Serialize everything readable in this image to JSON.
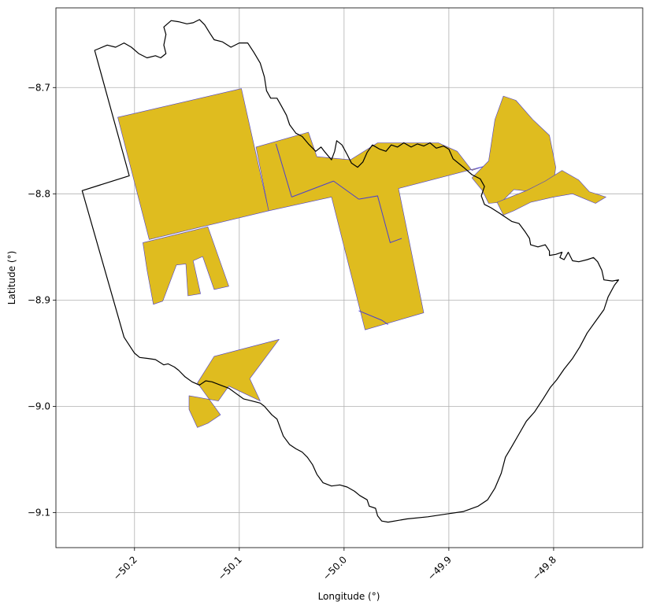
{
  "chart_data": {
    "type": "map",
    "title": "",
    "xlabel": "Longitude (°)",
    "ylabel": "Latitude (°)",
    "xlim": [
      -50.275,
      -49.715
    ],
    "ylim": [
      -9.133,
      -8.625
    ],
    "grid": true,
    "x_ticks": [
      {
        "value": -50.2,
        "label": "−50.2"
      },
      {
        "value": -50.1,
        "label": "−50.1"
      },
      {
        "value": -50.0,
        "label": "−50.0"
      },
      {
        "value": -49.9,
        "label": "−49.9"
      },
      {
        "value": -49.8,
        "label": "−49.8"
      }
    ],
    "y_ticks": [
      {
        "value": -8.7,
        "label": "−8.7"
      },
      {
        "value": -8.8,
        "label": "−8.8"
      },
      {
        "value": -8.9,
        "label": "−8.9"
      },
      {
        "value": -9.0,
        "label": "−9.0"
      },
      {
        "value": -9.1,
        "label": "−9.1"
      }
    ],
    "colors": {
      "parcel_fill": "#dfbc1f",
      "parcel_edge": "#4a3fcf",
      "boundary": "#000000",
      "grid": "#b0b0b0"
    },
    "boundary": {
      "name": "municipality-outline",
      "coords": [
        [
          -50.238,
          -8.665
        ],
        [
          -50.226,
          -8.66
        ],
        [
          -50.218,
          -8.662
        ],
        [
          -50.21,
          -8.658
        ],
        [
          -50.203,
          -8.662
        ],
        [
          -50.196,
          -8.668
        ],
        [
          -50.188,
          -8.672
        ],
        [
          -50.18,
          -8.67
        ],
        [
          -50.175,
          -8.672
        ],
        [
          -50.17,
          -8.668
        ],
        [
          -50.172,
          -8.66
        ],
        [
          -50.17,
          -8.65
        ],
        [
          -50.172,
          -8.643
        ],
        [
          -50.165,
          -8.637
        ],
        [
          -50.158,
          -8.638
        ],
        [
          -50.15,
          -8.64
        ],
        [
          -50.144,
          -8.639
        ],
        [
          -50.138,
          -8.636
        ],
        [
          -50.133,
          -8.641
        ],
        [
          -50.128,
          -8.649
        ],
        [
          -50.124,
          -8.655
        ],
        [
          -50.116,
          -8.657
        ],
        [
          -50.108,
          -8.662
        ],
        [
          -50.1,
          -8.658
        ],
        [
          -50.092,
          -8.658
        ],
        [
          -50.086,
          -8.667
        ],
        [
          -50.08,
          -8.677
        ],
        [
          -50.076,
          -8.69
        ],
        [
          -50.074,
          -8.703
        ],
        [
          -50.07,
          -8.71
        ],
        [
          -50.064,
          -8.71
        ],
        [
          -50.06,
          -8.717
        ],
        [
          -50.055,
          -8.726
        ],
        [
          -50.052,
          -8.735
        ],
        [
          -50.046,
          -8.743
        ],
        [
          -50.04,
          -8.746
        ],
        [
          -50.034,
          -8.753
        ],
        [
          -50.027,
          -8.76
        ],
        [
          -50.022,
          -8.756
        ],
        [
          -50.018,
          -8.761
        ],
        [
          -50.012,
          -8.768
        ],
        [
          -50.009,
          -8.76
        ],
        [
          -50.007,
          -8.75
        ],
        [
          -50.002,
          -8.754
        ],
        [
          -49.997,
          -8.763
        ],
        [
          -49.993,
          -8.771
        ],
        [
          -49.987,
          -8.775
        ],
        [
          -49.982,
          -8.77
        ],
        [
          -49.978,
          -8.761
        ],
        [
          -49.973,
          -8.754
        ],
        [
          -49.966,
          -8.758
        ],
        [
          -49.96,
          -8.76
        ],
        [
          -49.955,
          -8.754
        ],
        [
          -49.949,
          -8.756
        ],
        [
          -49.943,
          -8.752
        ],
        [
          -49.936,
          -8.756
        ],
        [
          -49.93,
          -8.753
        ],
        [
          -49.924,
          -8.755
        ],
        [
          -49.918,
          -8.752
        ],
        [
          -49.912,
          -8.757
        ],
        [
          -49.905,
          -8.755
        ],
        [
          -49.9,
          -8.758
        ],
        [
          -49.896,
          -8.767
        ],
        [
          -49.886,
          -8.775
        ],
        [
          -49.878,
          -8.782
        ],
        [
          -49.87,
          -8.786
        ],
        [
          -49.866,
          -8.793
        ],
        [
          -49.869,
          -8.802
        ],
        [
          -49.866,
          -8.81
        ],
        [
          -49.86,
          -8.813
        ],
        [
          -49.852,
          -8.818
        ],
        [
          -49.846,
          -8.822
        ],
        [
          -49.84,
          -8.826
        ],
        [
          -49.833,
          -8.828
        ],
        [
          -49.827,
          -8.836
        ],
        [
          -49.823,
          -8.842
        ],
        [
          -49.822,
          -8.848
        ],
        [
          -49.815,
          -8.85
        ],
        [
          -49.808,
          -8.848
        ],
        [
          -49.804,
          -8.854
        ],
        [
          -49.804,
          -8.858
        ],
        [
          -49.798,
          -8.857
        ],
        [
          -49.792,
          -8.855
        ],
        [
          -49.794,
          -8.86
        ],
        [
          -49.79,
          -8.862
        ],
        [
          -49.786,
          -8.855
        ],
        [
          -49.782,
          -8.863
        ],
        [
          -49.776,
          -8.864
        ],
        [
          -49.768,
          -8.862
        ],
        [
          -49.762,
          -8.86
        ],
        [
          -49.758,
          -8.864
        ],
        [
          -49.754,
          -8.872
        ],
        [
          -49.752,
          -8.881
        ],
        [
          -49.744,
          -8.882
        ],
        [
          -49.738,
          -8.881
        ],
        [
          -49.742,
          -8.886
        ],
        [
          -49.748,
          -8.897
        ],
        [
          -49.752,
          -8.909
        ],
        [
          -49.76,
          -8.92
        ],
        [
          -49.768,
          -8.931
        ],
        [
          -49.775,
          -8.944
        ],
        [
          -49.782,
          -8.955
        ],
        [
          -49.79,
          -8.965
        ],
        [
          -49.797,
          -8.975
        ],
        [
          -49.803,
          -8.982
        ],
        [
          -49.81,
          -8.993
        ],
        [
          -49.818,
          -9.005
        ],
        [
          -49.826,
          -9.014
        ],
        [
          -49.833,
          -9.026
        ],
        [
          -49.84,
          -9.038
        ],
        [
          -49.846,
          -9.048
        ],
        [
          -49.85,
          -9.063
        ],
        [
          -49.856,
          -9.077
        ],
        [
          -49.863,
          -9.088
        ],
        [
          -49.872,
          -9.094
        ],
        [
          -49.886,
          -9.099
        ],
        [
          -49.9,
          -9.101
        ],
        [
          -49.92,
          -9.104
        ],
        [
          -49.94,
          -9.106
        ],
        [
          -49.958,
          -9.109
        ],
        [
          -49.964,
          -9.108
        ],
        [
          -49.968,
          -9.103
        ],
        [
          -49.97,
          -9.096
        ],
        [
          -49.976,
          -9.094
        ],
        [
          -49.978,
          -9.088
        ],
        [
          -49.985,
          -9.084
        ],
        [
          -49.99,
          -9.08
        ],
        [
          -49.997,
          -9.076
        ],
        [
          -50.004,
          -9.074
        ],
        [
          -50.012,
          -9.075
        ],
        [
          -50.02,
          -9.072
        ],
        [
          -50.026,
          -9.064
        ],
        [
          -50.03,
          -9.055
        ],
        [
          -50.035,
          -9.048
        ],
        [
          -50.04,
          -9.043
        ],
        [
          -50.046,
          -9.04
        ],
        [
          -50.052,
          -9.036
        ],
        [
          -50.058,
          -9.028
        ],
        [
          -50.061,
          -9.02
        ],
        [
          -50.064,
          -9.012
        ],
        [
          -50.069,
          -9.008
        ],
        [
          -50.076,
          -9.0
        ],
        [
          -50.08,
          -8.997
        ],
        [
          -50.088,
          -8.995
        ],
        [
          -50.096,
          -8.993
        ],
        [
          -50.103,
          -8.988
        ],
        [
          -50.11,
          -8.983
        ],
        [
          -50.118,
          -8.98
        ],
        [
          -50.126,
          -8.977
        ],
        [
          -50.132,
          -8.976
        ],
        [
          -50.138,
          -8.98
        ],
        [
          -50.145,
          -8.977
        ],
        [
          -50.152,
          -8.972
        ],
        [
          -50.158,
          -8.966
        ],
        [
          -50.162,
          -8.963
        ],
        [
          -50.168,
          -8.96
        ],
        [
          -50.172,
          -8.961
        ],
        [
          -50.18,
          -8.956
        ],
        [
          -50.187,
          -8.955
        ],
        [
          -50.195,
          -8.954
        ],
        [
          -50.2,
          -8.95
        ],
        [
          -50.206,
          -8.941
        ],
        [
          -50.21,
          -8.935
        ],
        [
          -50.25,
          -8.797
        ],
        [
          -50.205,
          -8.783
        ],
        [
          -50.238,
          -8.665
        ]
      ]
    },
    "parcels": [
      {
        "name": "parcel-northwest-block",
        "coords": [
          [
            -50.216,
            -8.728
          ],
          [
            -50.098,
            -8.701
          ],
          [
            -50.072,
            -8.816
          ],
          [
            -50.186,
            -8.843
          ]
        ]
      },
      {
        "name": "parcel-west-fingers",
        "coords": [
          [
            -50.192,
            -8.846
          ],
          [
            -50.13,
            -8.831
          ],
          [
            -50.11,
            -8.887
          ],
          [
            -50.124,
            -8.89
          ],
          [
            -50.135,
            -8.859
          ],
          [
            -50.144,
            -8.863
          ],
          [
            -50.137,
            -8.894
          ],
          [
            -50.149,
            -8.896
          ],
          [
            -50.151,
            -8.866
          ],
          [
            -50.16,
            -8.867
          ],
          [
            -50.173,
            -8.901
          ],
          [
            -50.182,
            -8.904
          ],
          [
            -50.188,
            -8.872
          ]
        ]
      },
      {
        "name": "parcel-central-strip",
        "coords": [
          [
            -50.084,
            -8.756
          ],
          [
            -50.034,
            -8.742
          ],
          [
            -50.026,
            -8.765
          ],
          [
            -49.994,
            -8.768
          ],
          [
            -49.968,
            -8.752
          ],
          [
            -49.91,
            -8.752
          ],
          [
            -49.892,
            -8.76
          ],
          [
            -49.878,
            -8.778
          ],
          [
            -49.866,
            -8.774
          ],
          [
            -49.948,
            -8.795
          ],
          [
            -49.924,
            -8.912
          ],
          [
            -49.98,
            -8.928
          ],
          [
            -50.012,
            -8.803
          ],
          [
            -50.072,
            -8.816
          ]
        ]
      },
      {
        "name": "parcel-east-lobe",
        "coords": [
          [
            -49.878,
            -8.785
          ],
          [
            -49.862,
            -8.769
          ],
          [
            -49.856,
            -8.73
          ],
          [
            -49.848,
            -8.708
          ],
          [
            -49.836,
            -8.712
          ],
          [
            -49.82,
            -8.73
          ],
          [
            -49.804,
            -8.745
          ],
          [
            -49.798,
            -8.775
          ],
          [
            -49.8,
            -8.79
          ],
          [
            -49.82,
            -8.798
          ],
          [
            -49.838,
            -8.796
          ],
          [
            -49.85,
            -8.808
          ],
          [
            -49.862,
            -8.809
          ],
          [
            -49.868,
            -8.797
          ]
        ]
      },
      {
        "name": "parcel-east-arm",
        "coords": [
          [
            -49.854,
            -8.808
          ],
          [
            -49.826,
            -8.797
          ],
          [
            -49.808,
            -8.788
          ],
          [
            -49.792,
            -8.778
          ],
          [
            -49.776,
            -8.787
          ],
          [
            -49.766,
            -8.798
          ],
          [
            -49.75,
            -8.803
          ],
          [
            -49.76,
            -8.809
          ],
          [
            -49.782,
            -8.8
          ],
          [
            -49.8,
            -8.803
          ],
          [
            -49.822,
            -8.808
          ],
          [
            -49.838,
            -8.816
          ],
          [
            -49.848,
            -8.82
          ]
        ]
      },
      {
        "name": "parcel-south-wedge",
        "coords": [
          [
            -50.124,
            -8.953
          ],
          [
            -50.062,
            -8.937
          ],
          [
            -50.09,
            -8.974
          ],
          [
            -50.08,
            -8.995
          ],
          [
            -50.11,
            -8.981
          ],
          [
            -50.12,
            -8.995
          ],
          [
            -50.148,
            -8.99
          ],
          [
            -50.148,
            -9.003
          ],
          [
            -50.14,
            -9.02
          ],
          [
            -50.13,
            -9.016
          ],
          [
            -50.118,
            -9.008
          ],
          [
            -50.14,
            -8.978
          ]
        ]
      }
    ],
    "parcel_edges": [
      {
        "name": "edge-central-1",
        "coords": [
          [
            -50.065,
            -8.753
          ],
          [
            -50.05,
            -8.803
          ]
        ]
      },
      {
        "name": "edge-central-2",
        "coords": [
          [
            -50.05,
            -8.803
          ],
          [
            -50.01,
            -8.788
          ]
        ]
      },
      {
        "name": "edge-central-3",
        "coords": [
          [
            -50.01,
            -8.788
          ],
          [
            -49.986,
            -8.805
          ]
        ]
      },
      {
        "name": "edge-central-4",
        "coords": [
          [
            -49.986,
            -8.805
          ],
          [
            -49.968,
            -8.802
          ],
          [
            -49.956,
            -8.846
          ],
          [
            -49.945,
            -8.842
          ]
        ]
      },
      {
        "name": "edge-central-5",
        "coords": [
          [
            -49.986,
            -8.91
          ],
          [
            -49.964,
            -8.919
          ],
          [
            -49.958,
            -8.923
          ]
        ]
      }
    ]
  }
}
